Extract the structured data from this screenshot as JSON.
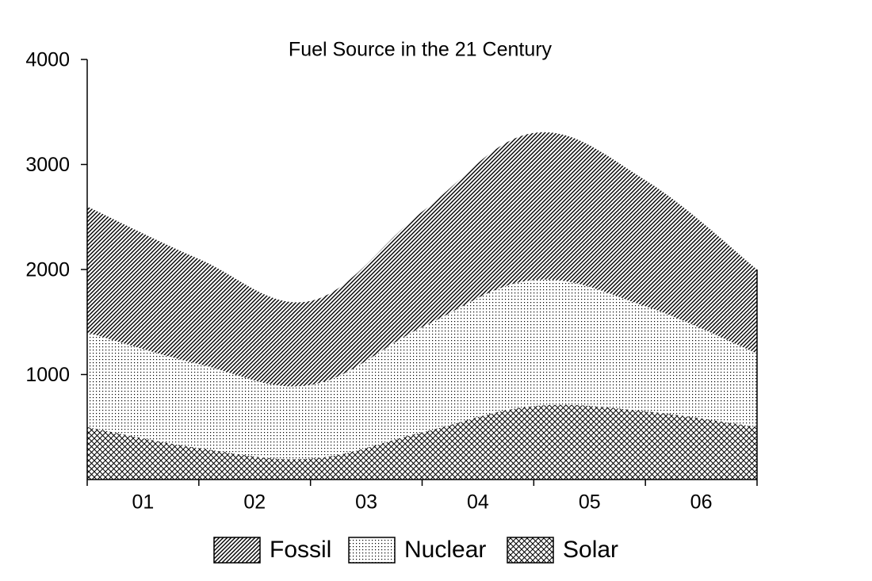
{
  "chart_data": {
    "type": "stacked_area",
    "title": "Fuel Source in the 21 Century",
    "categories": [
      "01",
      "02",
      "03",
      "04",
      "05",
      "06",
      null
    ],
    "series": [
      {
        "name": "Solar",
        "pattern": "crosshatch",
        "values": [
          500,
          300,
          200,
          450,
          700,
          650,
          500
        ]
      },
      {
        "name": "Nuclear",
        "pattern": "dots",
        "values": [
          900,
          800,
          700,
          1000,
          1200,
          1000,
          700
        ]
      },
      {
        "name": "Fossil",
        "pattern": "diagonal",
        "values": [
          1200,
          1000,
          800,
          1100,
          1400,
          1200,
          800
        ]
      }
    ],
    "legend_order": [
      "Fossil",
      "Nuclear",
      "Solar"
    ],
    "ylim": [
      0,
      4000
    ],
    "yticks": [
      1000,
      2000,
      3000,
      4000
    ]
  }
}
